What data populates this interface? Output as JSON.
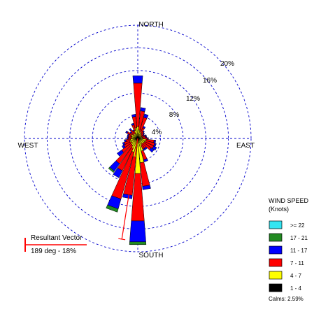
{
  "chart_data": {
    "type": "wind-rose",
    "direction_labels": {
      "north": "NORTH",
      "south": "SOUTH",
      "east": "EAST",
      "west": "WEST"
    },
    "ring_percents": [
      4,
      8,
      12,
      16,
      20
    ],
    "ring_labels": [
      "4%",
      "8%",
      "12%",
      "16%",
      "20%"
    ],
    "grid_color": "#0000cc",
    "legend": {
      "title_line1": "WIND SPEED",
      "title_line2": "(Knots)",
      "bins": [
        {
          "label": ">= 22",
          "color": "#33e5f2"
        },
        {
          "label": "17 - 21",
          "color": "#228b22"
        },
        {
          "label": "11 - 17",
          "color": "#0000ff"
        },
        {
          "label": "7 - 11",
          "color": "#ff0000"
        },
        {
          "label": "4 - 7",
          "color": "#ffff00"
        },
        {
          "label": "1 - 4",
          "color": "#000000"
        }
      ],
      "calms_text": "Calms: 2.59%"
    },
    "resultant_vector": {
      "label": "Resultant Vector",
      "value_text": "189 deg - 18%",
      "direction_deg": 189,
      "percent": 18,
      "color": "#ff0000"
    },
    "petal_width_deg": 9,
    "petals": [
      {
        "dir": 0,
        "c": [
          0.3,
          1.8,
          7.7,
          1.3,
          0,
          0
        ]
      },
      {
        "dir": 10,
        "c": [
          0.3,
          1.2,
          3.4,
          0.6,
          0,
          0
        ]
      },
      {
        "dir": 20,
        "c": [
          0.3,
          1.0,
          2.6,
          0.6,
          0,
          0
        ]
      },
      {
        "dir": 30,
        "c": [
          0.3,
          0.8,
          1.0,
          0.3,
          0,
          0
        ]
      },
      {
        "dir": 40,
        "c": [
          0.3,
          0.6,
          0.6,
          0.2,
          0,
          0
        ]
      },
      {
        "dir": 50,
        "c": [
          0.3,
          0.5,
          0.5,
          0.2,
          0,
          0
        ]
      },
      {
        "dir": 60,
        "c": [
          0.3,
          0.4,
          0.4,
          0.2,
          0,
          0
        ]
      },
      {
        "dir": 70,
        "c": [
          0.3,
          0.5,
          0.6,
          0.2,
          0,
          0
        ]
      },
      {
        "dir": 80,
        "c": [
          0.3,
          0.5,
          0.6,
          0.2,
          0,
          0
        ]
      },
      {
        "dir": 90,
        "c": [
          0.3,
          0.6,
          0.8,
          0.2,
          0,
          0
        ]
      },
      {
        "dir": 100,
        "c": [
          0.3,
          1.2,
          1.4,
          0.3,
          0,
          0
        ]
      },
      {
        "dir": 110,
        "c": [
          0.3,
          1.2,
          1.6,
          0.3,
          0,
          0
        ]
      },
      {
        "dir": 120,
        "c": [
          0.3,
          1.0,
          1.8,
          0.6,
          0,
          0
        ]
      },
      {
        "dir": 130,
        "c": [
          0.3,
          1.0,
          1.6,
          0.6,
          0,
          0
        ]
      },
      {
        "dir": 140,
        "c": [
          0.3,
          0.8,
          1.0,
          0.3,
          0,
          0
        ]
      },
      {
        "dir": 150,
        "c": [
          0.3,
          1.0,
          0.8,
          0.3,
          0,
          0
        ]
      },
      {
        "dir": 160,
        "c": [
          0.3,
          2.0,
          1.6,
          0.4,
          0,
          0
        ]
      },
      {
        "dir": 170,
        "c": [
          0.3,
          4.0,
          4.2,
          0.6,
          0,
          0
        ]
      },
      {
        "dir": 180,
        "c": [
          0.4,
          5.8,
          8.4,
          3.7,
          0.5,
          0
        ]
      },
      {
        "dir": 190,
        "c": [
          0.3,
          3.0,
          6.8,
          0.6,
          0,
          0
        ]
      },
      {
        "dir": 200,
        "c": [
          0.3,
          2.2,
          8.6,
          1.8,
          0.6,
          0
        ]
      },
      {
        "dir": 210,
        "c": [
          0.3,
          1.6,
          4.4,
          1.4,
          0,
          0
        ]
      },
      {
        "dir": 220,
        "c": [
          0.3,
          1.2,
          4.0,
          1.6,
          0.3,
          0
        ]
      },
      {
        "dir": 230,
        "c": [
          0.3,
          1.2,
          2.0,
          1.0,
          0,
          0
        ]
      },
      {
        "dir": 240,
        "c": [
          0.3,
          1.0,
          1.4,
          0.4,
          0,
          0
        ]
      },
      {
        "dir": 250,
        "c": [
          0.3,
          1.2,
          1.0,
          0.3,
          0,
          0
        ]
      },
      {
        "dir": 260,
        "c": [
          0.3,
          1.0,
          0.8,
          0.3,
          0,
          0
        ]
      },
      {
        "dir": 270,
        "c": [
          0.3,
          0.8,
          0.6,
          0.2,
          0,
          0
        ]
      },
      {
        "dir": 280,
        "c": [
          0.3,
          0.8,
          0.6,
          0.2,
          0,
          0
        ]
      },
      {
        "dir": 290,
        "c": [
          0.3,
          0.8,
          0.6,
          0.2,
          0,
          0
        ]
      },
      {
        "dir": 300,
        "c": [
          0.3,
          1.0,
          0.8,
          0.3,
          0,
          0
        ]
      },
      {
        "dir": 310,
        "c": [
          0.3,
          0.6,
          0.6,
          0.2,
          0,
          0
        ]
      },
      {
        "dir": 320,
        "c": [
          0.3,
          0.8,
          0.8,
          0.3,
          0,
          0
        ]
      },
      {
        "dir": 330,
        "c": [
          0.3,
          0.6,
          0.6,
          0.2,
          0,
          0
        ]
      },
      {
        "dir": 340,
        "c": [
          0.3,
          1.2,
          1.0,
          0.3,
          0,
          0
        ]
      },
      {
        "dir": 350,
        "c": [
          0.3,
          1.6,
          2.0,
          0.4,
          0,
          0
        ]
      }
    ]
  }
}
